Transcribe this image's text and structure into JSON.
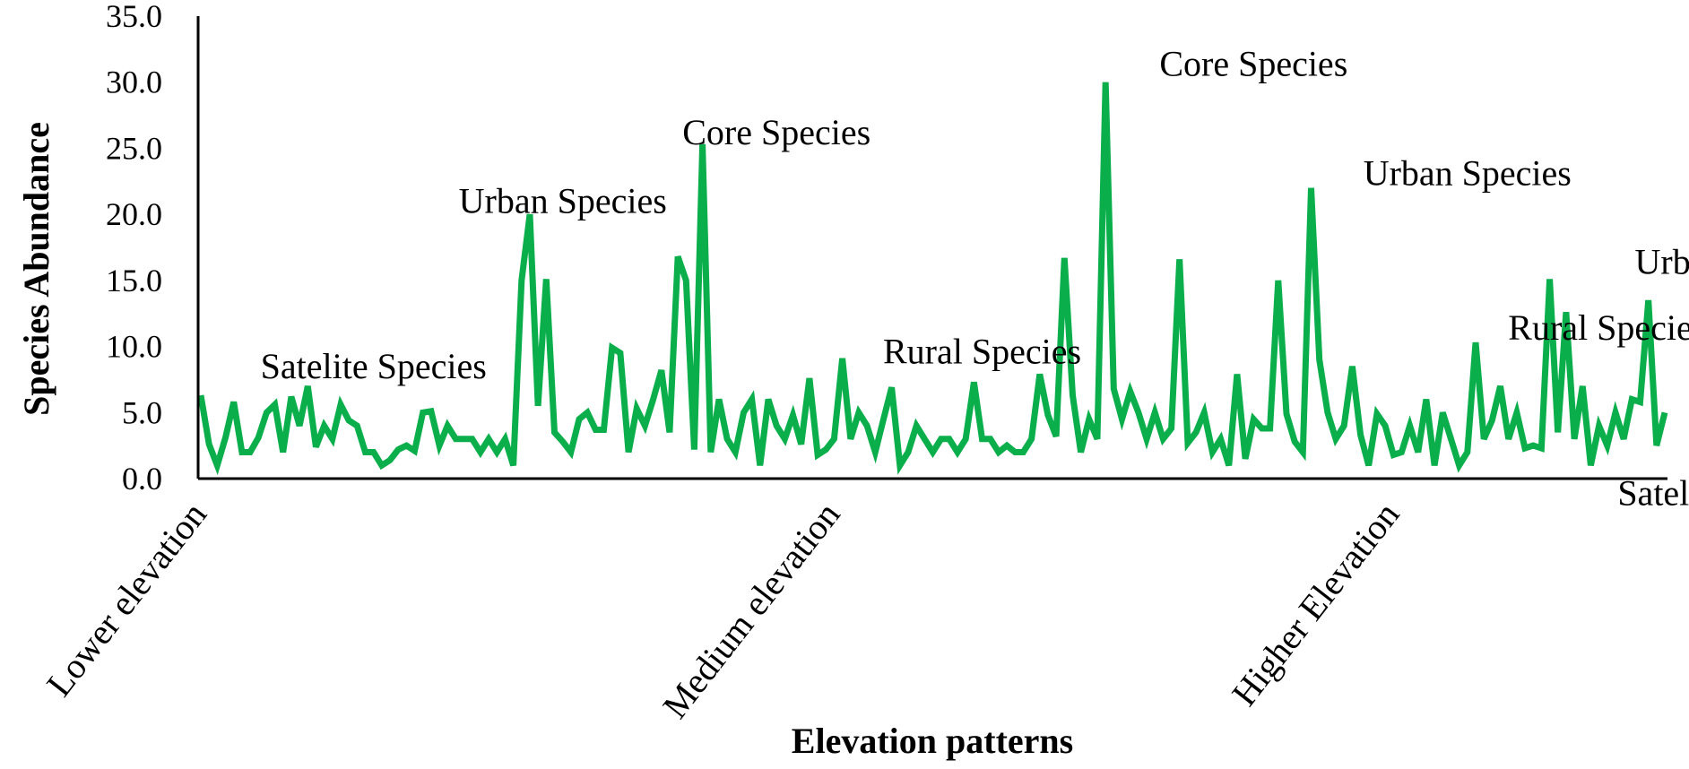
{
  "chart_data": {
    "type": "line",
    "title": "",
    "xlabel": "Elevation patterns",
    "ylabel": "Species Abundance",
    "ylim": [
      0,
      35
    ],
    "yticks": [
      "0.0",
      "5.0",
      "10.0",
      "15.0",
      "20.0",
      "25.0",
      "30.0",
      "35.0"
    ],
    "grid": false,
    "legend": "none",
    "colors": {
      "line": "#0aaf4b",
      "axis": "#000000"
    },
    "category_labels": [
      {
        "text": "Lower elevation",
        "index": 0
      },
      {
        "text": "Medium elevation",
        "index": 77
      },
      {
        "text": "Higher Elevation",
        "index": 145
      }
    ],
    "annotations": [
      {
        "text": "Satelite Species",
        "x": 21,
        "y": 7.6
      },
      {
        "text": "Urban Species",
        "x": 44,
        "y": 20.1
      },
      {
        "text": "Core Species",
        "x": 70,
        "y": 25.3
      },
      {
        "text": "Rural Species",
        "x": 95,
        "y": 8.7
      },
      {
        "text": "Core Species",
        "x": 128,
        "y": 30.5
      },
      {
        "text": "Urban Species",
        "x": 154,
        "y": 22.2
      },
      {
        "text": "Rural Species",
        "x": 171,
        "y": 10.5
      },
      {
        "text": "Urban Species",
        "x": 187,
        "y": 15.5
      },
      {
        "text": "Satelite Species",
        "x": 186,
        "y": -2.0
      }
    ],
    "series": [
      {
        "values": [
          6.3,
          2.6,
          1,
          3.1,
          5.8,
          2,
          2,
          3.1,
          5,
          5.6,
          2,
          6.2,
          4,
          7,
          2.4,
          4,
          3,
          5.6,
          4.4,
          4,
          2,
          2,
          1,
          1.4,
          2.2,
          2.5,
          2.1,
          5,
          5.1,
          2.5,
          4,
          3,
          3,
          3,
          2,
          3,
          2,
          3,
          1,
          15,
          20,
          5.5,
          15.1,
          3.5,
          2.8,
          2,
          4.5,
          5,
          3.7,
          3.7,
          9.9,
          9.5,
          2,
          5.3,
          4,
          6,
          8.2,
          3.5,
          16.8,
          15,
          2.2,
          25.3,
          2,
          6,
          3,
          2,
          5,
          6,
          1,
          6,
          4,
          3,
          4.8,
          2.6,
          7.6,
          1.8,
          2.2,
          3,
          9.1,
          3,
          5,
          4,
          2,
          4.5,
          6.9,
          1,
          2,
          4,
          3,
          2,
          3,
          3,
          2,
          3,
          7.3,
          3,
          3,
          2,
          2.5,
          2,
          2,
          3,
          7.9,
          4.8,
          3.2,
          16.7,
          6.3,
          2,
          4.5,
          3,
          30,
          6.8,
          4.5,
          6.6,
          5,
          3,
          5,
          3,
          3.8,
          16.6,
          2.7,
          3.5,
          5,
          2,
          3,
          1,
          7.9,
          1.5,
          4.5,
          3.8,
          3.8,
          15,
          4.9,
          2.8,
          2,
          22,
          9,
          5,
          3,
          4,
          8.5,
          3.3,
          1,
          4.9,
          4,
          1.8,
          2,
          4,
          2,
          6,
          1,
          5,
          3,
          1,
          2,
          10.3,
          3,
          4.4,
          7,
          3,
          5,
          2.3,
          2.5,
          2.3,
          15.1,
          3.5,
          12.6,
          3,
          7,
          1,
          4,
          2.5,
          5,
          3,
          6,
          5.8,
          13.5,
          2.5,
          5
        ]
      }
    ]
  }
}
